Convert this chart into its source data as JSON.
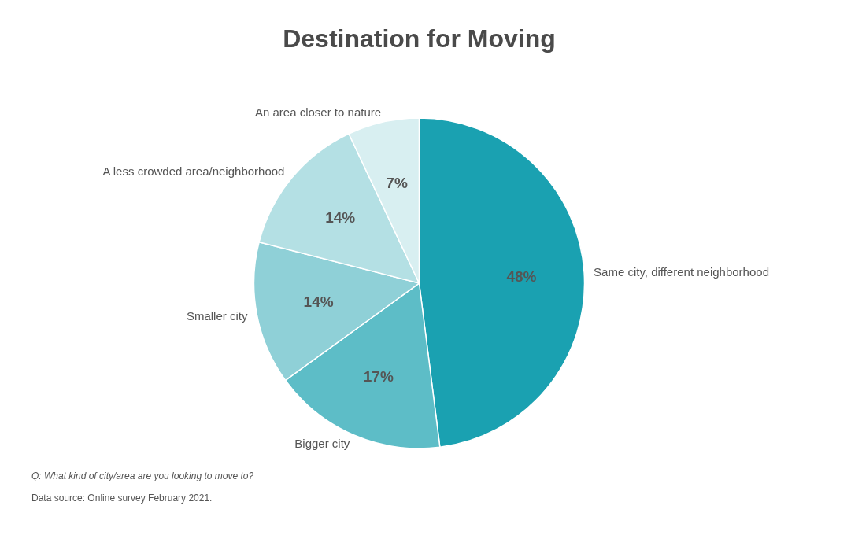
{
  "chart_data": {
    "type": "pie",
    "title": "Destination for Moving",
    "categories": [
      "Same city, different neighborhood",
      "Bigger city",
      "Smaller city",
      "A less crowded area/neighborhood",
      "An area closer to nature"
    ],
    "values": [
      48,
      17,
      14,
      14,
      7
    ],
    "value_labels": [
      "48%",
      "17%",
      "14%",
      "14%",
      "7%"
    ],
    "colors": [
      "#1aa1b1",
      "#5dbdc7",
      "#8fd0d7",
      "#b4e0e4",
      "#d8eff1"
    ],
    "annotations": [
      "Q: What kind of city/area are you looking to move to?",
      "Data source: Online survey February 2021."
    ]
  }
}
